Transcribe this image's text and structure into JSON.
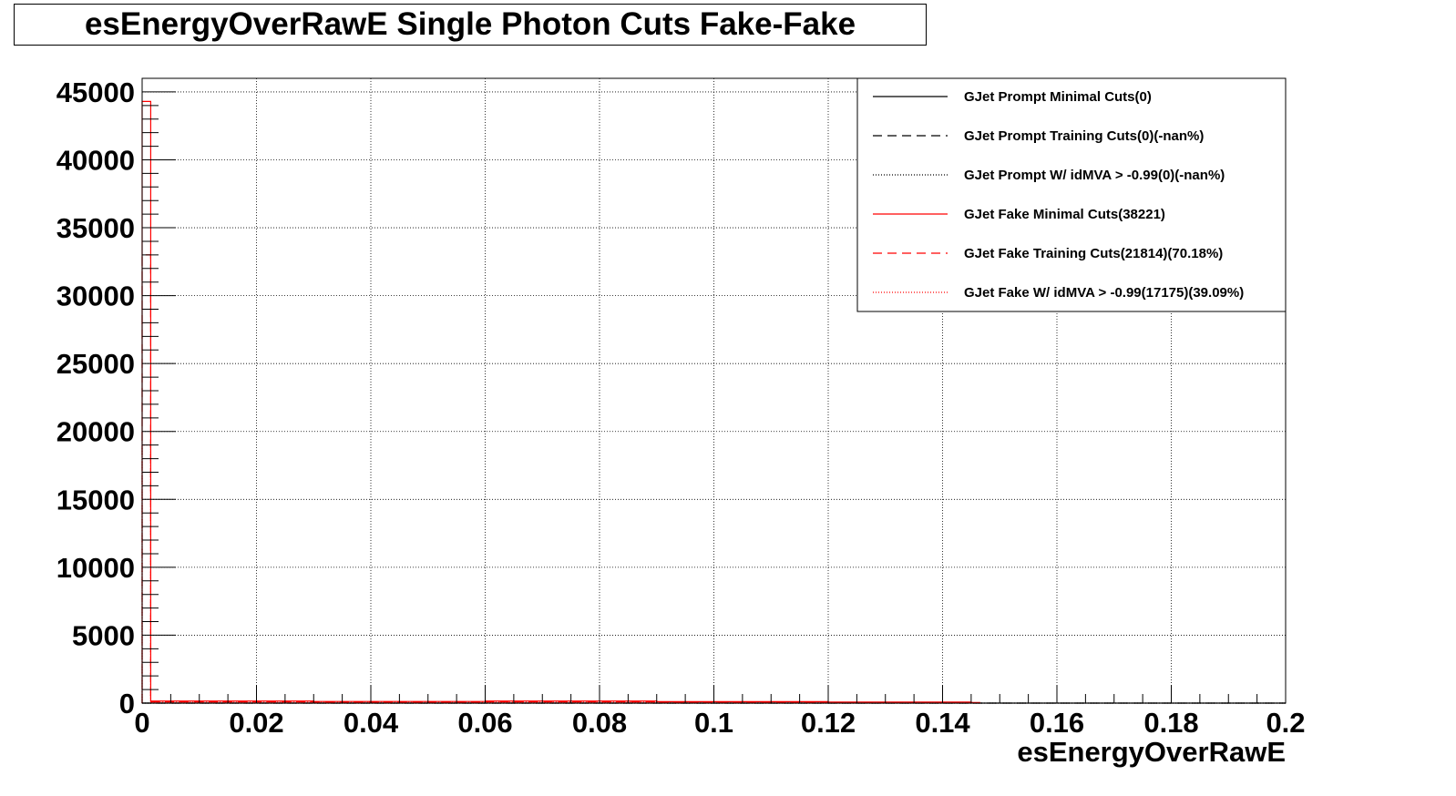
{
  "chart_data": {
    "type": "line",
    "title": "esEnergyOverRawE Single Photon Cuts Fake-Fake",
    "xlabel": "esEnergyOverRawE",
    "ylabel": "",
    "xlim": [
      0,
      0.2
    ],
    "ylim": [
      0,
      46000
    ],
    "x_ticks": [
      0,
      0.02,
      0.04,
      0.06,
      0.08,
      0.1,
      0.12,
      0.14,
      0.16,
      0.18,
      0.2
    ],
    "x_tick_labels": [
      "0",
      "0.02",
      "0.04",
      "0.06",
      "0.08",
      "0.1",
      "0.12",
      "0.14",
      "0.16",
      "0.18",
      "0.2"
    ],
    "y_ticks": [
      0,
      5000,
      10000,
      15000,
      20000,
      25000,
      30000,
      35000,
      40000,
      45000
    ],
    "y_tick_labels": [
      "0",
      "5000",
      "10000",
      "15000",
      "20000",
      "25000",
      "30000",
      "35000",
      "40000",
      "45000"
    ],
    "grid": true,
    "legend_position": "top-right",
    "series": [
      {
        "name": "GJet Prompt Minimal Cuts(0)",
        "color": "#000000",
        "style": "solid",
        "x": [
          0,
          0.2
        ],
        "y": [
          0,
          0
        ]
      },
      {
        "name": "GJet Prompt Training Cuts(0)(-nan%)",
        "color": "#000000",
        "style": "dashed",
        "x": [
          0,
          0.2
        ],
        "y": [
          0,
          0
        ]
      },
      {
        "name": "GJet Prompt W/ idMVA > -0.99(0)(-nan%)",
        "color": "#000000",
        "style": "dotted",
        "x": [
          0,
          0.2
        ],
        "y": [
          0,
          0
        ]
      },
      {
        "name": "GJet Fake Minimal Cuts(38221)",
        "color": "#ff0000",
        "style": "solid",
        "x": [
          0,
          0.001,
          0.0015,
          0.03,
          0.06,
          0.09,
          0.12,
          0.145,
          0.1465
        ],
        "y": [
          44300,
          44300,
          150,
          120,
          150,
          110,
          80,
          40,
          0
        ]
      },
      {
        "name": "GJet Fake Training Cuts(21814)(70.18%)",
        "color": "#ff0000",
        "style": "dashed",
        "x": [
          0,
          0.001,
          0.0015,
          0.03,
          0.06,
          0.09,
          0.12,
          0.145,
          0.1465
        ],
        "y": [
          33000,
          33000,
          90,
          70,
          90,
          60,
          40,
          20,
          0
        ]
      },
      {
        "name": "GJet Fake W/ idMVA > -0.99(17175)(39.09%)",
        "color": "#ff0000",
        "style": "dotted",
        "x": [
          0,
          0.001,
          0.0015,
          0.03,
          0.06,
          0.09,
          0.12,
          0.145,
          0.1465
        ],
        "y": [
          19000,
          19000,
          60,
          50,
          60,
          40,
          25,
          10,
          0
        ]
      }
    ]
  }
}
